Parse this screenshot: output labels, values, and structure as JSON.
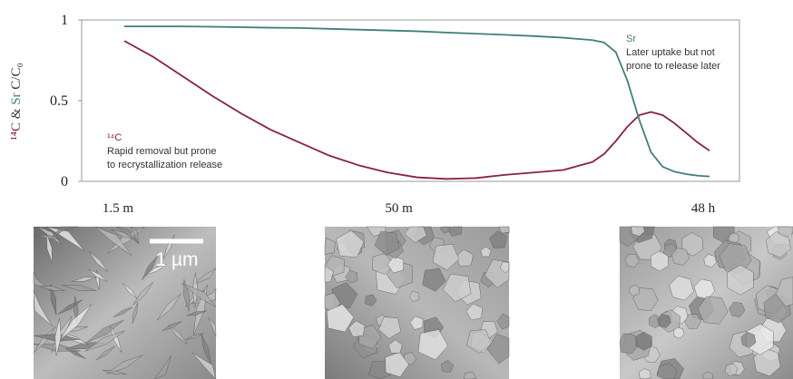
{
  "chart_data": {
    "type": "line",
    "ylabel": {
      "c14": "¹⁴C",
      "amp": "&",
      "sr": "Sr",
      "rest": "C/C₀"
    },
    "x": [
      0,
      5,
      10,
      15,
      20,
      25,
      30,
      35,
      40,
      45,
      50,
      55,
      60,
      65,
      70,
      75,
      80,
      82,
      84,
      86,
      88,
      90,
      92,
      94,
      96,
      98,
      100
    ],
    "xlim": [
      0,
      100
    ],
    "xticks": [
      {
        "value": 0,
        "label": "1.5 m"
      },
      {
        "value": 48,
        "label": "50 m"
      },
      {
        "value": 100,
        "label": "48 h"
      }
    ],
    "ylim": [
      0,
      1
    ],
    "yticks": [
      0,
      0.5,
      1
    ],
    "series": [
      {
        "name": "¹⁴C",
        "color": "#8b1f45",
        "values": [
          0.87,
          0.77,
          0.65,
          0.53,
          0.42,
          0.32,
          0.24,
          0.16,
          0.1,
          0.055,
          0.025,
          0.015,
          0.02,
          0.04,
          0.055,
          0.07,
          0.12,
          0.17,
          0.25,
          0.34,
          0.41,
          0.43,
          0.41,
          0.36,
          0.3,
          0.24,
          0.19
        ]
      },
      {
        "name": "Sr",
        "color": "#3f7f7a",
        "values": [
          0.96,
          0.96,
          0.96,
          0.958,
          0.955,
          0.952,
          0.95,
          0.945,
          0.94,
          0.935,
          0.93,
          0.922,
          0.915,
          0.908,
          0.9,
          0.89,
          0.875,
          0.86,
          0.8,
          0.62,
          0.38,
          0.18,
          0.09,
          0.06,
          0.045,
          0.035,
          0.03
        ]
      }
    ],
    "annotations": {
      "c14": [
        "Rapid removal but prone",
        "to recrystallization release"
      ],
      "sr": [
        "Later uptake but not",
        "prone to release later"
      ]
    },
    "scale_bar": "1 µm"
  }
}
